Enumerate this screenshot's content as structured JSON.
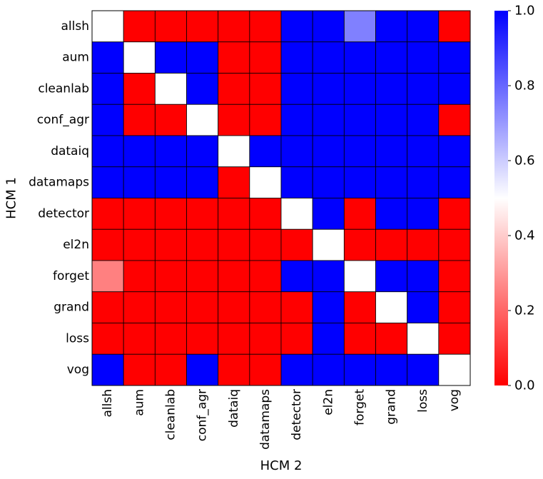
{
  "chart_data": {
    "type": "heatmap",
    "xlabel": "HCM 2",
    "ylabel": "HCM 1",
    "x_categories": [
      "allsh",
      "aum",
      "cleanlab",
      "conf_agr",
      "dataiq",
      "datamaps",
      "detector",
      "el2n",
      "forget",
      "grand",
      "loss",
      "vog"
    ],
    "y_categories": [
      "allsh",
      "aum",
      "cleanlab",
      "conf_agr",
      "dataiq",
      "datamaps",
      "detector",
      "el2n",
      "forget",
      "grand",
      "loss",
      "vog"
    ],
    "values": [
      [
        0.5,
        0,
        0,
        0,
        0,
        0,
        1,
        1,
        0.75,
        1,
        1,
        0
      ],
      [
        1,
        0.5,
        1,
        1,
        0,
        0,
        1,
        1,
        1,
        1,
        1,
        1
      ],
      [
        1,
        0,
        0.5,
        1,
        0,
        0,
        1,
        1,
        1,
        1,
        1,
        1
      ],
      [
        1,
        0,
        0,
        0.5,
        0,
        0,
        1,
        1,
        1,
        1,
        1,
        0
      ],
      [
        1,
        1,
        1,
        1,
        0.5,
        1,
        1,
        1,
        1,
        1,
        1,
        1
      ],
      [
        1,
        1,
        1,
        1,
        0,
        0.5,
        1,
        1,
        1,
        1,
        1,
        1
      ],
      [
        0,
        0,
        0,
        0,
        0,
        0,
        0.5,
        1,
        0,
        1,
        1,
        0
      ],
      [
        0,
        0,
        0,
        0,
        0,
        0,
        0,
        0.5,
        0,
        0,
        0,
        0
      ],
      [
        0.25,
        0,
        0,
        0,
        0,
        0,
        1,
        1,
        0.5,
        1,
        1,
        0
      ],
      [
        0,
        0,
        0,
        0,
        0,
        0,
        0,
        1,
        0,
        0.5,
        1,
        0
      ],
      [
        0,
        0,
        0,
        0,
        0,
        0,
        0,
        1,
        0,
        0,
        0.5,
        0
      ],
      [
        1,
        0,
        0,
        1,
        0,
        0,
        1,
        1,
        1,
        1,
        1,
        0.5
      ]
    ],
    "colormap": {
      "low": "#ff0000",
      "mid": "#ffffff",
      "high": "#0000ff"
    },
    "colorbar": {
      "vmin": 0.0,
      "vmax": 1.0,
      "ticks": [
        0.0,
        0.2,
        0.4,
        0.6,
        0.8,
        1.0
      ],
      "tick_labels": [
        "0.0",
        "0.2",
        "0.4",
        "0.6",
        "0.8",
        "1.0"
      ]
    },
    "grid_lines": true,
    "cell_border_color": "#000000"
  }
}
